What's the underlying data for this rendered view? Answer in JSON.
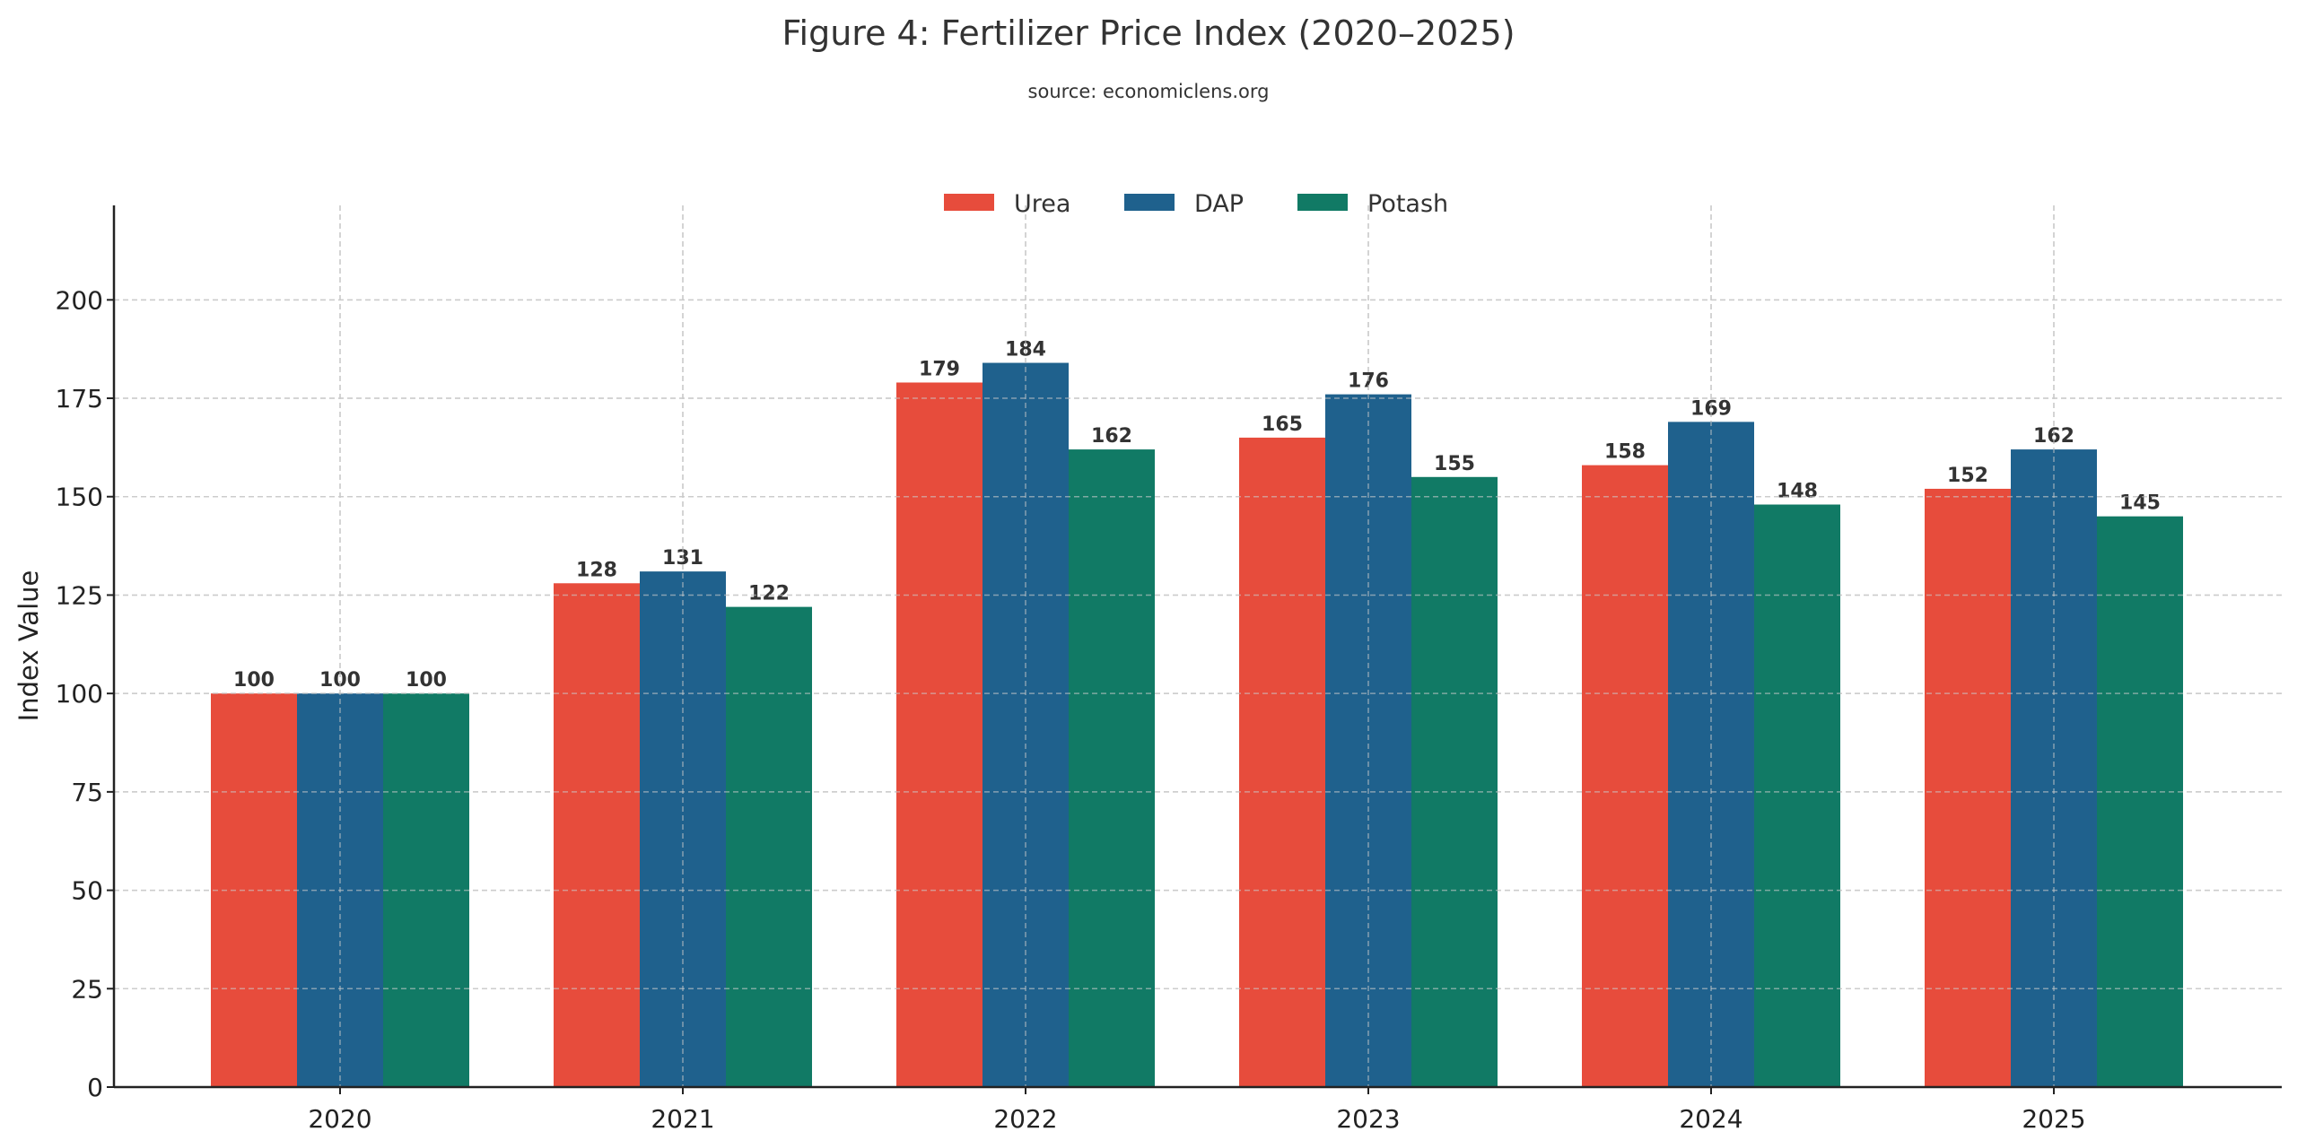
{
  "chart_data": {
    "type": "bar",
    "title": "Figure 4: Fertilizer Price Index (2020–2025)",
    "subtitle": "source: economiclens.org",
    "xlabel": "",
    "ylabel": "Index Value",
    "categories": [
      "2020",
      "2021",
      "2022",
      "2023",
      "2024",
      "2025"
    ],
    "series": [
      {
        "name": "Urea",
        "color": "#e74c3c",
        "values": [
          100,
          128,
          179,
          165,
          158,
          152
        ]
      },
      {
        "name": "DAP",
        "color": "#1f618d",
        "values": [
          100,
          131,
          184,
          176,
          169,
          162
        ]
      },
      {
        "name": "Potash",
        "color": "#117a65",
        "values": [
          100,
          122,
          162,
          155,
          148,
          145
        ]
      }
    ],
    "ylim": [
      0,
      224
    ],
    "yticks": [
      0,
      25,
      50,
      75,
      100,
      125,
      150,
      175,
      200
    ],
    "grid": true,
    "legend": "top-center",
    "data_labels": true
  }
}
